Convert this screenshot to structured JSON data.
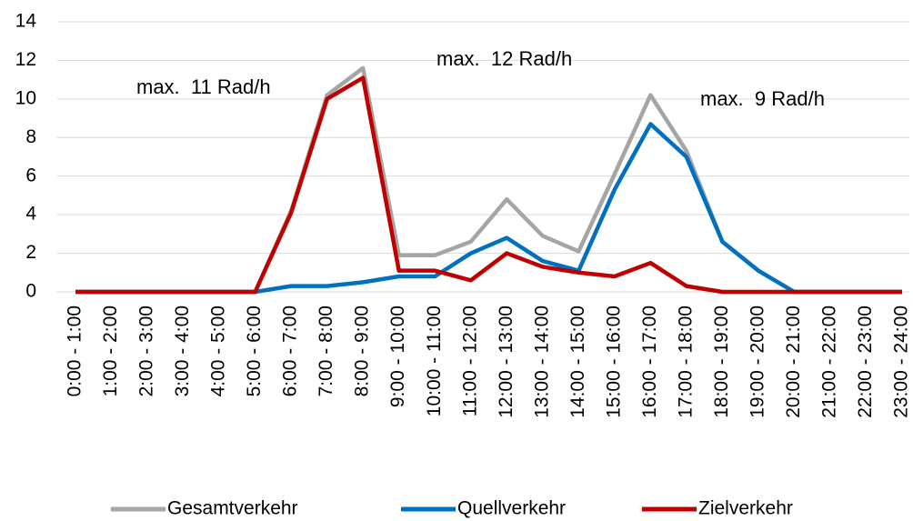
{
  "chart_data": {
    "type": "line",
    "categories": [
      "0:00 - 1:00",
      "1:00 - 2:00",
      "2:00 - 3:00",
      "3:00 - 4:00",
      "4:00 - 5:00",
      "5:00 - 6:00",
      "6:00 - 7:00",
      "7:00 - 8:00",
      "8:00 - 9:00",
      "9:00 - 10:00",
      "10:00 - 11:00",
      "11:00 - 12:00",
      "12:00 - 13:00",
      "13:00 - 14:00",
      "14:00 - 15:00",
      "15:00 - 16:00",
      "16:00 - 17:00",
      "17:00 - 18:00",
      "18:00 - 19:00",
      "19:00 - 20:00",
      "20:00 - 21:00",
      "21:00 - 22:00",
      "22:00 - 23:00",
      "23:00 - 24:00"
    ],
    "series": [
      {
        "name": "Gesamtverkehr",
        "color": "#a5a5a5",
        "values": [
          0,
          0,
          0,
          0,
          0,
          0,
          4.2,
          10.2,
          11.6,
          1.9,
          1.9,
          2.6,
          4.8,
          2.9,
          2.1,
          6.1,
          10.2,
          7.3,
          2.6,
          1.1,
          0,
          0,
          0,
          0
        ]
      },
      {
        "name": "Quellverkehr",
        "color": "#0070c0",
        "values": [
          0,
          0,
          0,
          0,
          0,
          0,
          0.3,
          0.3,
          0.5,
          0.8,
          0.8,
          2,
          2.8,
          1.6,
          1.1,
          5.3,
          8.7,
          7,
          2.6,
          1.1,
          0,
          0,
          0,
          0
        ]
      },
      {
        "name": "Zielverkehr",
        "color": "#c00000",
        "values": [
          0,
          0,
          0,
          0,
          0,
          0,
          4.1,
          10,
          11.1,
          1.1,
          1.1,
          0.6,
          2,
          1.3,
          1,
          0.8,
          1.5,
          0.3,
          0,
          0,
          0,
          0,
          0,
          0
        ]
      }
    ],
    "annotations": [
      {
        "text": "max.  11 Rad/h",
        "color": "#c00000"
      },
      {
        "text": "max.  12 Rad/h",
        "color": "#a5a5a5"
      },
      {
        "text": "max.  9 Rad/h",
        "color": "#0070c0"
      }
    ],
    "ylim": [
      0,
      14
    ],
    "yticks": [
      0,
      2,
      4,
      6,
      8,
      10,
      12,
      14
    ],
    "grid": true
  }
}
